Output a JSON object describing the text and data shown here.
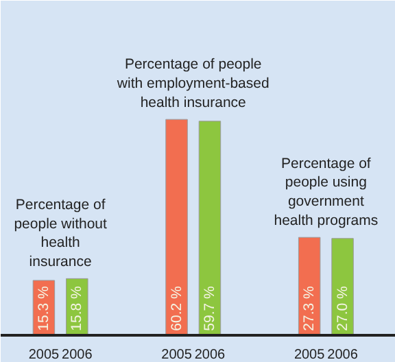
{
  "chart_data": {
    "type": "bar",
    "categories": [
      "2005",
      "2006",
      null,
      null,
      "2005",
      "2006",
      null,
      null,
      "2005",
      "2006"
    ],
    "values": [
      15.3,
      15.8,
      null,
      null,
      60.2,
      59.7,
      null,
      null,
      27.3,
      27.0
    ],
    "colors": [
      "#f26e50",
      "#8dc63f",
      null,
      null,
      "#f26e50",
      "#8dc63f",
      null,
      null,
      "#f26e50",
      "#8dc63f"
    ],
    "value_labels": [
      "15.3 %",
      "15.8 %",
      null,
      null,
      "60.2 %",
      "59.7 %",
      null,
      null,
      "27.3 %",
      "27.0 %"
    ],
    "annotations": [
      "Percentage of people without health insurance",
      "Percentage of people with employment-based health insurance",
      "Percentage of people using government health programs"
    ]
  }
}
